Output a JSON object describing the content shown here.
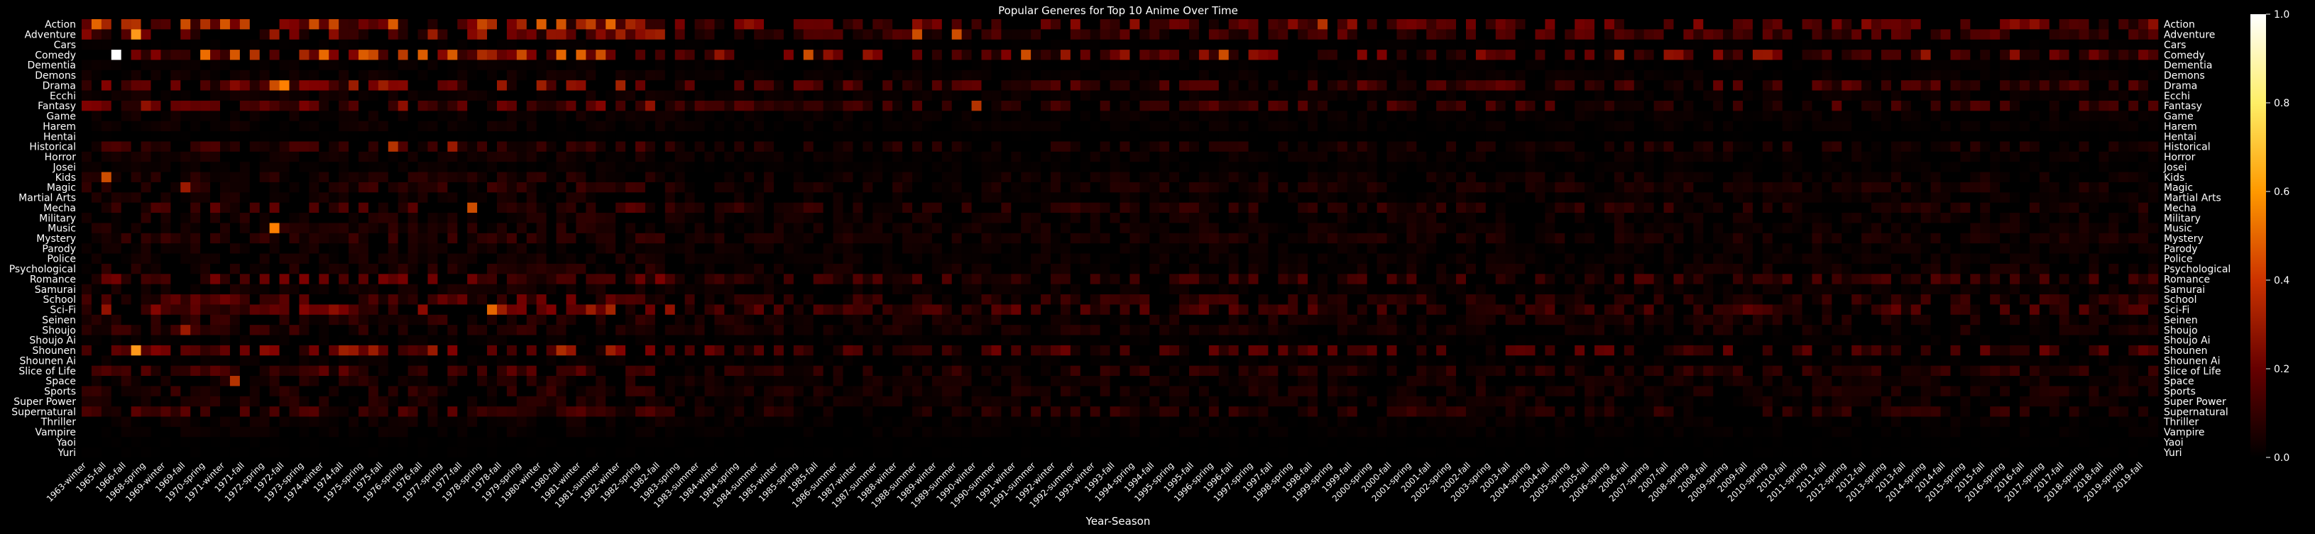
{
  "chart_data": {
    "type": "heatmap",
    "title": "Popular Generes for Top 10 Anime Over Time",
    "xlabel": "Year-Season",
    "ylabel": "",
    "rows": [
      "Action",
      "Adventure",
      "Cars",
      "Comedy",
      "Dementia",
      "Demons",
      "Drama",
      "Ecchi",
      "Fantasy",
      "Game",
      "Harem",
      "Hentai",
      "Historical",
      "Horror",
      "Josei",
      "Kids",
      "Magic",
      "Martial Arts",
      "Mecha",
      "Military",
      "Music",
      "Mystery",
      "Parody",
      "Police",
      "Psychological",
      "Romance",
      "Samurai",
      "School",
      "Sci-Fi",
      "Seinen",
      "Shoujo",
      "Shoujo Ai",
      "Shounen",
      "Shounen Ai",
      "Slice of Life",
      "Space",
      "Sports",
      "Super Power",
      "Supernatural",
      "Thriller",
      "Vampire",
      "Yaoi",
      "Yuri"
    ],
    "x_tick_labels": [
      "1963-winter",
      "1965-fall",
      "1966-fall",
      "1968-spring",
      "1969-winter",
      "1969-fall",
      "1970-spring",
      "1971-winter",
      "1971-fall",
      "1972-spring",
      "1972-fall",
      "1973-spring",
      "1974-winter",
      "1974-fall",
      "1975-spring",
      "1975-fall",
      "1976-spring",
      "1976-fall",
      "1977-spring",
      "1977-fall",
      "1978-spring",
      "1978-fall",
      "1979-spring",
      "1980-winter",
      "1980-fall",
      "1981-winter",
      "1981-summer",
      "1982-winter",
      "1982-spring",
      "1982-fall",
      "1983-spring",
      "1983-summer",
      "1984-winter",
      "1984-spring",
      "1984-summer",
      "1985-winter",
      "1985-spring",
      "1985-fall",
      "1986-summer",
      "1987-winter",
      "1987-summer",
      "1988-winter",
      "1988-summer",
      "1989-winter",
      "1989-summer",
      "1990-winter",
      "1990-summer",
      "1991-winter",
      "1991-summer",
      "1992-winter",
      "1992-summer",
      "1993-winter",
      "1993-fall",
      "1994-spring",
      "1994-fall",
      "1995-spring",
      "1995-fall",
      "1996-spring",
      "1996-fall",
      "1997-spring",
      "1997-fall",
      "1998-spring",
      "1998-fall",
      "1999-spring",
      "1999-fall",
      "2000-spring",
      "2000-fall",
      "2001-spring",
      "2001-fall",
      "2002-spring",
      "2002-fall",
      "2003-spring",
      "2003-fall",
      "2004-spring",
      "2004-fall",
      "2005-spring",
      "2005-fall",
      "2006-spring",
      "2006-fall",
      "2007-spring",
      "2007-fall",
      "2008-spring",
      "2008-fall",
      "2009-spring",
      "2009-fall",
      "2010-spring",
      "2010-fall",
      "2011-spring",
      "2011-fall",
      "2012-spring",
      "2012-fall",
      "2013-spring",
      "2013-fall",
      "2014-spring",
      "2014-fall",
      "2015-spring",
      "2015-fall",
      "2016-spring",
      "2016-fall",
      "2017-spring",
      "2017-fall",
      "2018-spring",
      "2018-fall",
      "2019-spring",
      "2019-fall"
    ],
    "num_columns": 210,
    "colorbar": {
      "colormap": "afmhot",
      "range": [
        0,
        1
      ],
      "ticks": [
        "0.0",
        "0.2",
        "0.4",
        "0.6",
        "0.8",
        "1.0"
      ]
    },
    "highlights": [
      {
        "row": "Comedy",
        "col": 3,
        "value": 1.0
      },
      {
        "row": "Adventure",
        "col": 5,
        "value": 0.55
      },
      {
        "row": "Shounen",
        "col": 5,
        "value": 0.55
      },
      {
        "row": "Music",
        "col": 19,
        "value": 0.5
      },
      {
        "row": "Drama",
        "col": 20,
        "value": 0.5
      },
      {
        "row": "Drama",
        "col": 19,
        "value": 0.4
      },
      {
        "row": "Sci-Fi",
        "col": 41,
        "value": 0.45
      },
      {
        "row": "Mecha",
        "col": 39,
        "value": 0.4
      },
      {
        "row": "Kids",
        "col": 2,
        "value": 0.4
      },
      {
        "row": "Comedy",
        "col": 73,
        "value": 0.4
      },
      {
        "row": "Comedy",
        "col": 95,
        "value": 0.4
      },
      {
        "row": "Comedy",
        "col": 115,
        "value": 0.4
      },
      {
        "row": "Adventure",
        "col": 84,
        "value": 0.4
      },
      {
        "row": "Adventure",
        "col": 88,
        "value": 0.4
      },
      {
        "row": "Action",
        "col": 125,
        "value": 0.35
      },
      {
        "row": "Fantasy",
        "col": 90,
        "value": 0.35
      },
      {
        "row": "Historical",
        "col": 31,
        "value": 0.35
      },
      {
        "row": "Historical",
        "col": 37,
        "value": 0.3
      },
      {
        "row": "Space",
        "col": 15,
        "value": 0.35
      },
      {
        "row": "Shoujo",
        "col": 10,
        "value": 0.3
      },
      {
        "row": "Magic",
        "col": 10,
        "value": 0.3
      }
    ],
    "grid": false,
    "legend": "none"
  }
}
